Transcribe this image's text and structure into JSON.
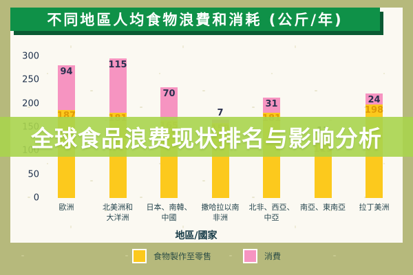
{
  "title": "不同地區人均食物浪費和消耗 (公斤/年)",
  "overlay": {
    "text": "全球食品浪费现状排名与影响分析"
  },
  "chart_data": {
    "type": "bar",
    "stacked": true,
    "title": "不同地區人均食物浪費和消耗 (公斤/年)",
    "xlabel": "地區/國家",
    "ylabel": "",
    "ylim": [
      0,
      300
    ],
    "yticks": [
      0,
      50,
      100,
      150,
      200,
      250,
      300
    ],
    "grid": false,
    "legend_position": "bottom",
    "categories": [
      "歐洲",
      "北美洲和大洋洲",
      "日本、南韓、中國",
      "撒哈拉以南非洲",
      "北非、西亞、中亞",
      "南亞、東南亞",
      "拉丁美洲"
    ],
    "category_lines": [
      [
        "歐洲"
      ],
      [
        "北美洲和",
        "大洋洲"
      ],
      [
        "日本、南韓、",
        "中國"
      ],
      [
        "撒哈拉以南",
        "非洲"
      ],
      [
        "北非、西亞、",
        "中亞"
      ],
      [
        "南亞、東南亞"
      ],
      [
        "拉丁美洲"
      ]
    ],
    "series": [
      {
        "name": "食物製作至零售",
        "color": "#fcc91d",
        "values": [
          187,
          181,
          165,
          159,
          181,
          115,
          198
        ]
      },
      {
        "name": "消費",
        "color": "#f694c1",
        "values": [
          94,
          115,
          70,
          7,
          31,
          13,
          24
        ]
      }
    ]
  },
  "legend": {
    "items": [
      {
        "label": "食物製作至零售",
        "color": "#fcc91d"
      },
      {
        "label": "消費",
        "color": "#f694c1"
      }
    ]
  },
  "colors": {
    "frame_background": "#b6b97c",
    "card_background": "#fbf9f2",
    "banner_green": "#0f9148",
    "banner_shadow": "#0a5a33",
    "bar_yellow": "#fcc91d",
    "bar_pink": "#f694c1",
    "value_navy": "#2b3150",
    "value_amber": "#df9a07",
    "overlay_green": "#a9d44e",
    "axis_text": "#1c2f4a"
  }
}
